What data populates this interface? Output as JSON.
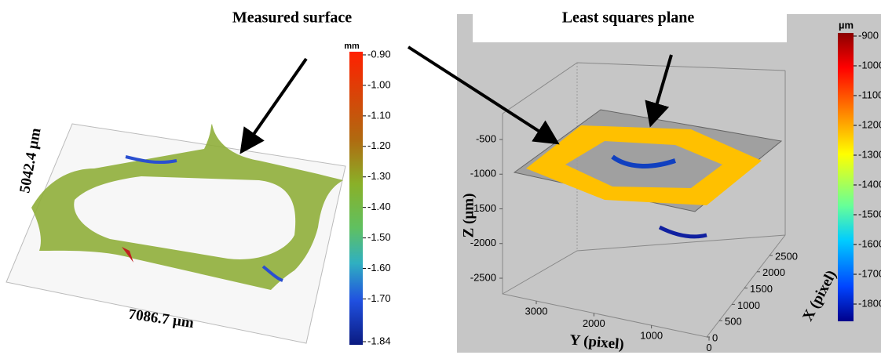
{
  "left_panel": {
    "title": "Measured surface",
    "colorbar": {
      "unit": "mm",
      "ticks": [
        {
          "value": -0.9,
          "label": "-0.90"
        },
        {
          "value": -1.0,
          "label": "-1.00"
        },
        {
          "value": -1.1,
          "label": "-1.10"
        },
        {
          "value": -1.2,
          "label": "-1.20"
        },
        {
          "value": -1.3,
          "label": "-1.30"
        },
        {
          "value": -1.4,
          "label": "-1.40"
        },
        {
          "value": -1.5,
          "label": "-1.50"
        },
        {
          "value": -1.6,
          "label": "-1.60"
        },
        {
          "value": -1.7,
          "label": "-1.70"
        },
        {
          "value": -1.84,
          "label": "-1.84"
        }
      ]
    },
    "height_label": "5042.4 µm",
    "width_label": "7086.7 µm"
  },
  "right_panel": {
    "title": "Least squares plane",
    "colorbar": {
      "unit": "µm",
      "ticks": [
        -900,
        -1000,
        -1100,
        -1200,
        -1300,
        -1400,
        -1500,
        -1600,
        -1700,
        -1800
      ]
    },
    "z_axis": {
      "label": "Z (µm)",
      "ticks": [
        -500,
        -1000,
        -1500,
        -2000,
        -2500
      ]
    },
    "y_axis": {
      "label": "Y (pixel)",
      "ticks": [
        3000,
        2000,
        1000,
        0
      ]
    },
    "x_axis": {
      "label": "X (pixel)",
      "ticks": [
        0,
        500,
        1000,
        1500,
        2000,
        2500
      ]
    }
  }
}
